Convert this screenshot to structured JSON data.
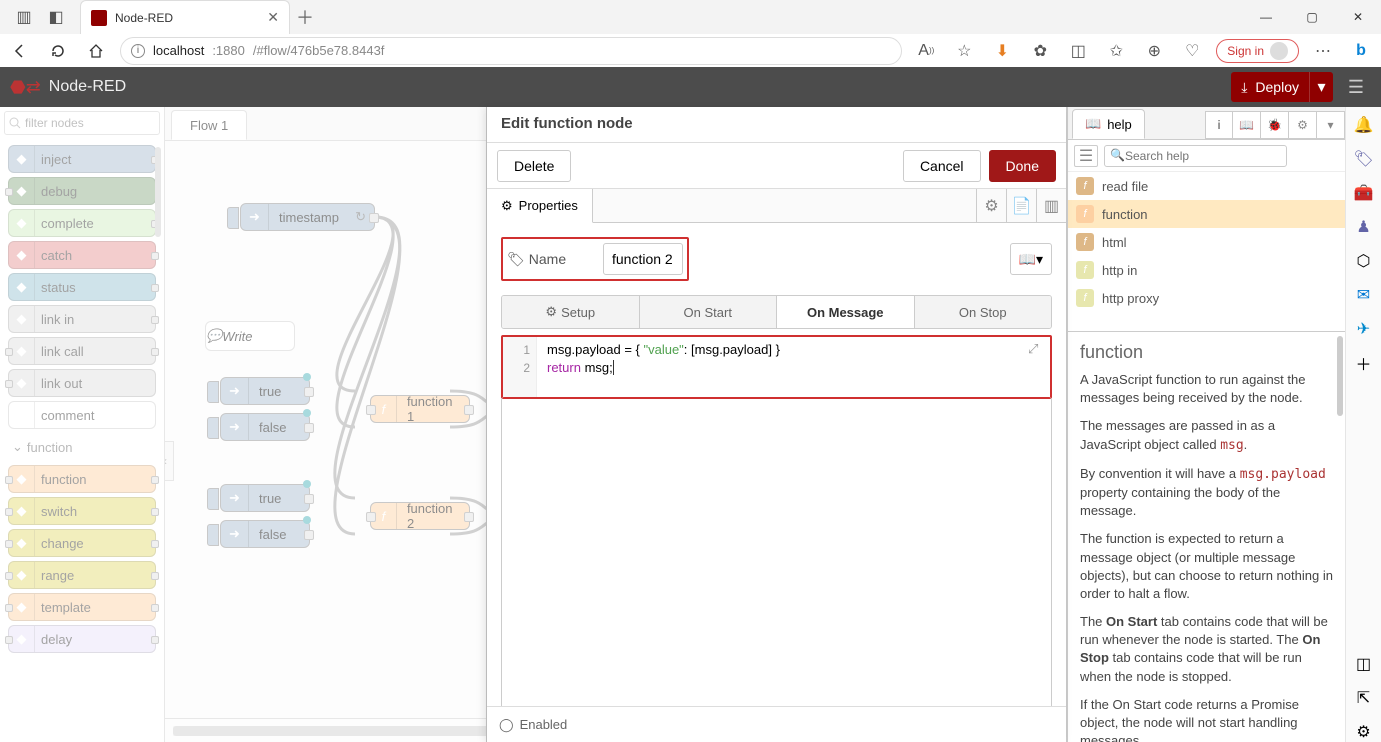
{
  "browser": {
    "tab_title": "Node-RED",
    "url_host": "localhost",
    "url_port": ":1880",
    "url_path": "/#flow/476b5e78.8443f",
    "signin": "Sign in"
  },
  "header": {
    "title": "Node-RED",
    "deploy": "Deploy"
  },
  "palette": {
    "filter_placeholder": "filter nodes",
    "category": "function",
    "nodes_common": [
      {
        "label": "inject",
        "bg": "#a6bbcf",
        "ports": "r"
      },
      {
        "label": "debug",
        "bg": "#87a980",
        "ports": "l"
      },
      {
        "label": "complete",
        "bg": "#ceecbe",
        "ports": "r"
      },
      {
        "label": "catch",
        "bg": "#e49191",
        "ports": "r"
      },
      {
        "label": "status",
        "bg": "#94c1d0",
        "ports": "r"
      },
      {
        "label": "link in",
        "bg": "#dddddd",
        "ports": "r"
      },
      {
        "label": "link call",
        "bg": "#dddddd",
        "ports": "lr"
      },
      {
        "label": "link out",
        "bg": "#dddddd",
        "ports": "l"
      },
      {
        "label": "comment",
        "bg": "#ffffff",
        "ports": ""
      }
    ],
    "nodes_func": [
      {
        "label": "function",
        "bg": "#fdd0a2",
        "ports": "lr"
      },
      {
        "label": "switch",
        "bg": "#e2d96e",
        "ports": "lr"
      },
      {
        "label": "change",
        "bg": "#e2d96e",
        "ports": "lr"
      },
      {
        "label": "range",
        "bg": "#e2d96e",
        "ports": "lr"
      },
      {
        "label": "template",
        "bg": "#fdd0a2",
        "ports": "lr"
      },
      {
        "label": "delay",
        "bg": "#e6e0f8",
        "ports": "lr"
      }
    ]
  },
  "workspace": {
    "tab": "Flow 1",
    "comment": "Write",
    "timestamp": "timestamp",
    "true1": "true",
    "false1": "false",
    "true2": "true",
    "false2": "false",
    "func1": "function 1",
    "func2": "function 2"
  },
  "dialog": {
    "title": "Edit function node",
    "delete": "Delete",
    "cancel": "Cancel",
    "done": "Done",
    "properties_tab": "Properties",
    "name_label": "Name",
    "name_value": "function 2",
    "bookmark_icon": "▾",
    "tabs": {
      "setup": "Setup",
      "onstart": "On Start",
      "onmessage": "On Message",
      "onstop": "On Stop"
    },
    "code_line1_a": "msg.payload = { ",
    "code_line1_str": "\"value\"",
    "code_line1_b": ": [msg.payload] }",
    "code_line2_kw": "return",
    "code_line2_rest": " msg;",
    "enabled": "Enabled"
  },
  "sidebar": {
    "tab": "help",
    "search_placeholder": "Search help",
    "nodes": [
      {
        "label": "read file",
        "bg": "#deb887"
      },
      {
        "label": "function",
        "bg": "#fdd0a2",
        "sel": true
      },
      {
        "label": "html",
        "bg": "#deb887"
      },
      {
        "label": "http in",
        "bg": "#e7e7ae"
      },
      {
        "label": "http proxy",
        "bg": "#e7e7ae"
      }
    ],
    "help_title": "function",
    "help_p1": "A JavaScript function to run against the messages being received by the node.",
    "help_p2a": "The messages are passed in as a JavaScript object called ",
    "help_p2b": "msg",
    "help_p3a": "By convention it will have a ",
    "help_p3b": "msg.payload",
    "help_p3c": " property containing the body of the message.",
    "help_p4": "The function is expected to return a message object (or multiple message objects), but can choose to return nothing in order to halt a flow.",
    "help_p5a": "The ",
    "help_p5b": "On Start",
    "help_p5c": " tab contains code that will be run whenever the node is started. The ",
    "help_p5d": "On Stop",
    "help_p5e": " tab contains code that will be run when the node is stopped.",
    "help_p6": "If the On Start code returns a Promise object, the node will not start handling messages"
  },
  "colors": {
    "inject": "#a6bbcf",
    "function": "#fdd0a2",
    "header": "#4c4c4c",
    "deploy": "#8f0000",
    "highlight": "#d03030"
  }
}
